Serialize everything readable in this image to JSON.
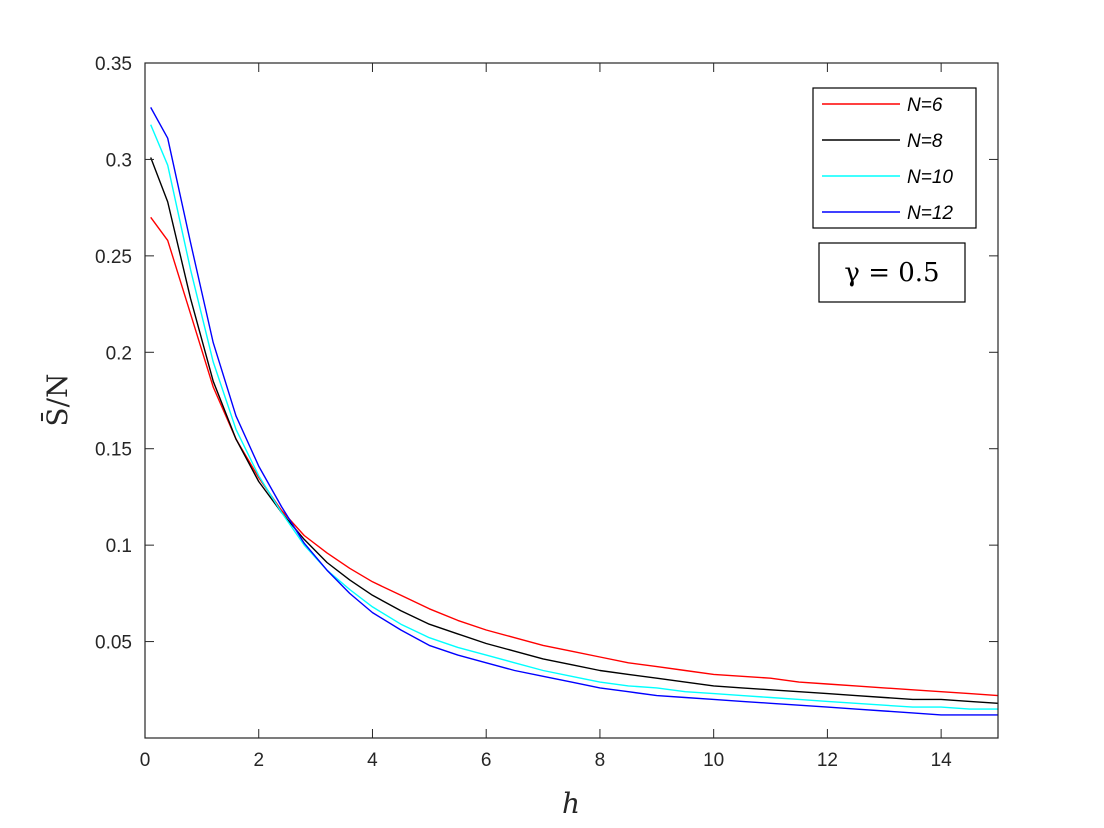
{
  "chart_data": {
    "type": "line",
    "xlabel": "h",
    "ylabel": "S̄/N",
    "xlim": [
      0,
      15
    ],
    "ylim": [
      0,
      0.35
    ],
    "xticks": [
      0,
      2,
      4,
      6,
      8,
      10,
      12,
      14
    ],
    "yticks": [
      0.05,
      0.1,
      0.15,
      0.2,
      0.25,
      0.3,
      0.35
    ],
    "xtick_labels": [
      "0",
      "2",
      "4",
      "6",
      "8",
      "10",
      "12",
      "14"
    ],
    "ytick_labels": [
      "0.05",
      "0.1",
      "0.15",
      "0.2",
      "0.25",
      "0.3",
      "0.35"
    ],
    "grid": false,
    "legend_position": "top-right",
    "annotation": "γ = 0.5",
    "series": [
      {
        "name": "N=6",
        "color": "#ff0000",
        "x": [
          0.1,
          0.4,
          0.8,
          1.2,
          1.6,
          2.0,
          2.4,
          2.8,
          3.2,
          3.6,
          4.0,
          4.5,
          5.0,
          5.5,
          6.0,
          6.5,
          7.0,
          7.5,
          8.0,
          8.5,
          9.0,
          9.5,
          10.0,
          10.5,
          11.0,
          11.5,
          12.0,
          12.5,
          13.0,
          13.5,
          14.0,
          14.5,
          15.0
        ],
        "y": [
          0.27,
          0.258,
          0.22,
          0.182,
          0.155,
          0.135,
          0.118,
          0.105,
          0.096,
          0.088,
          0.081,
          0.074,
          0.067,
          0.061,
          0.056,
          0.052,
          0.048,
          0.045,
          0.042,
          0.039,
          0.037,
          0.035,
          0.033,
          0.032,
          0.031,
          0.029,
          0.028,
          0.027,
          0.026,
          0.025,
          0.024,
          0.023,
          0.022
        ]
      },
      {
        "name": "N=8",
        "color": "#000000",
        "x": [
          0.1,
          0.4,
          0.8,
          1.2,
          1.6,
          2.0,
          2.4,
          2.8,
          3.2,
          3.6,
          4.0,
          4.5,
          5.0,
          5.5,
          6.0,
          6.5,
          7.0,
          7.5,
          8.0,
          8.5,
          9.0,
          9.5,
          10.0,
          10.5,
          11.0,
          11.5,
          12.0,
          12.5,
          13.0,
          13.5,
          14.0,
          14.5,
          15.0
        ],
        "y": [
          0.301,
          0.278,
          0.228,
          0.185,
          0.155,
          0.133,
          0.117,
          0.103,
          0.091,
          0.082,
          0.074,
          0.066,
          0.059,
          0.054,
          0.049,
          0.045,
          0.041,
          0.038,
          0.035,
          0.033,
          0.031,
          0.029,
          0.027,
          0.026,
          0.025,
          0.024,
          0.023,
          0.022,
          0.021,
          0.02,
          0.02,
          0.019,
          0.018
        ]
      },
      {
        "name": "N=10",
        "color": "#00ffff",
        "x": [
          0.1,
          0.4,
          0.8,
          1.2,
          1.6,
          2.0,
          2.4,
          2.8,
          3.2,
          3.6,
          4.0,
          4.5,
          5.0,
          5.5,
          6.0,
          6.5,
          7.0,
          7.5,
          8.0,
          8.5,
          9.0,
          9.5,
          10.0,
          10.5,
          11.0,
          11.5,
          12.0,
          12.5,
          13.0,
          13.5,
          14.0,
          14.5,
          15.0
        ],
        "y": [
          0.318,
          0.297,
          0.243,
          0.195,
          0.16,
          0.136,
          0.117,
          0.1,
          0.087,
          0.077,
          0.068,
          0.059,
          0.052,
          0.047,
          0.043,
          0.039,
          0.035,
          0.032,
          0.029,
          0.027,
          0.026,
          0.024,
          0.023,
          0.022,
          0.021,
          0.02,
          0.019,
          0.018,
          0.017,
          0.016,
          0.016,
          0.015,
          0.015
        ]
      },
      {
        "name": "N=12",
        "color": "#0000ff",
        "x": [
          0.1,
          0.4,
          0.8,
          1.2,
          1.6,
          2.0,
          2.4,
          2.8,
          3.2,
          3.6,
          4.0,
          4.5,
          5.0,
          5.5,
          6.0,
          6.5,
          7.0,
          7.5,
          8.0,
          8.5,
          9.0,
          9.5,
          10.0,
          10.5,
          11.0,
          11.5,
          12.0,
          12.5,
          13.0,
          13.5,
          14.0,
          14.5,
          15.0
        ],
        "y": [
          0.327,
          0.311,
          0.257,
          0.205,
          0.167,
          0.141,
          0.12,
          0.101,
          0.087,
          0.075,
          0.065,
          0.056,
          0.048,
          0.043,
          0.039,
          0.035,
          0.032,
          0.029,
          0.026,
          0.024,
          0.022,
          0.021,
          0.02,
          0.019,
          0.018,
          0.017,
          0.016,
          0.015,
          0.014,
          0.013,
          0.012,
          0.012,
          0.012
        ]
      }
    ]
  }
}
